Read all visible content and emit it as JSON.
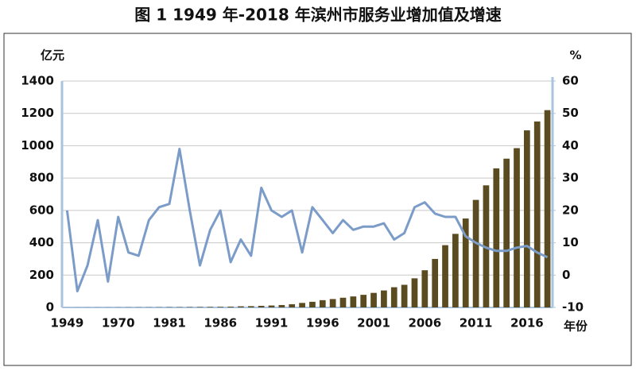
{
  "chart_data": {
    "type": "combo",
    "title": "图 1 1949 年-2018 年滨州市服务业增加值及增速",
    "y_label": "亿元",
    "y2_label": "%",
    "x_label": "年份",
    "categories": [
      "1949",
      null,
      null,
      null,
      null,
      "1970",
      null,
      null,
      null,
      null,
      "1981",
      null,
      null,
      null,
      null,
      "1986",
      null,
      null,
      null,
      null,
      "1991",
      null,
      null,
      null,
      null,
      "1996",
      null,
      null,
      null,
      null,
      "2001",
      null,
      null,
      null,
      null,
      "2006",
      null,
      null,
      null,
      null,
      "2011",
      null,
      null,
      null,
      null,
      "2016",
      null,
      null
    ],
    "series": [
      {
        "type": "bar",
        "color": "#5b4b20",
        "values": [
          0.3,
          0.4,
          0.5,
          0.6,
          0.6,
          0.8,
          1,
          1.1,
          1.3,
          1.5,
          2,
          2,
          2.5,
          3,
          3.5,
          4,
          5,
          7,
          8,
          10,
          12,
          15,
          20,
          28,
          35,
          45,
          52,
          60,
          68,
          78,
          90,
          105,
          125,
          140,
          180,
          230,
          300,
          385,
          455,
          550,
          665,
          755,
          860,
          920,
          985,
          1095,
          1150,
          1220
        ]
      },
      {
        "type": "line",
        "axis": "y2",
        "color": "#7b9cc8",
        "values": [
          20,
          -5,
          3,
          17,
          -2,
          18,
          7,
          6,
          17,
          21,
          22,
          39,
          20,
          3,
          14,
          20,
          4,
          11,
          6,
          27,
          20,
          18,
          20,
          7,
          21,
          17,
          13,
          17,
          14,
          15,
          15,
          16,
          11,
          13,
          21,
          22.5,
          19,
          18,
          18,
          12,
          10,
          8.5,
          7.5,
          7.5,
          8.5,
          9,
          7,
          5.5
        ]
      }
    ],
    "ylim": [
      0,
      1400
    ],
    "yticks": [
      0,
      200,
      400,
      600,
      800,
      1000,
      1200,
      1400
    ],
    "y2lim": [
      -10,
      60
    ],
    "y2ticks": [
      -10,
      0,
      10,
      20,
      30,
      40,
      50,
      60
    ],
    "grid": true
  }
}
